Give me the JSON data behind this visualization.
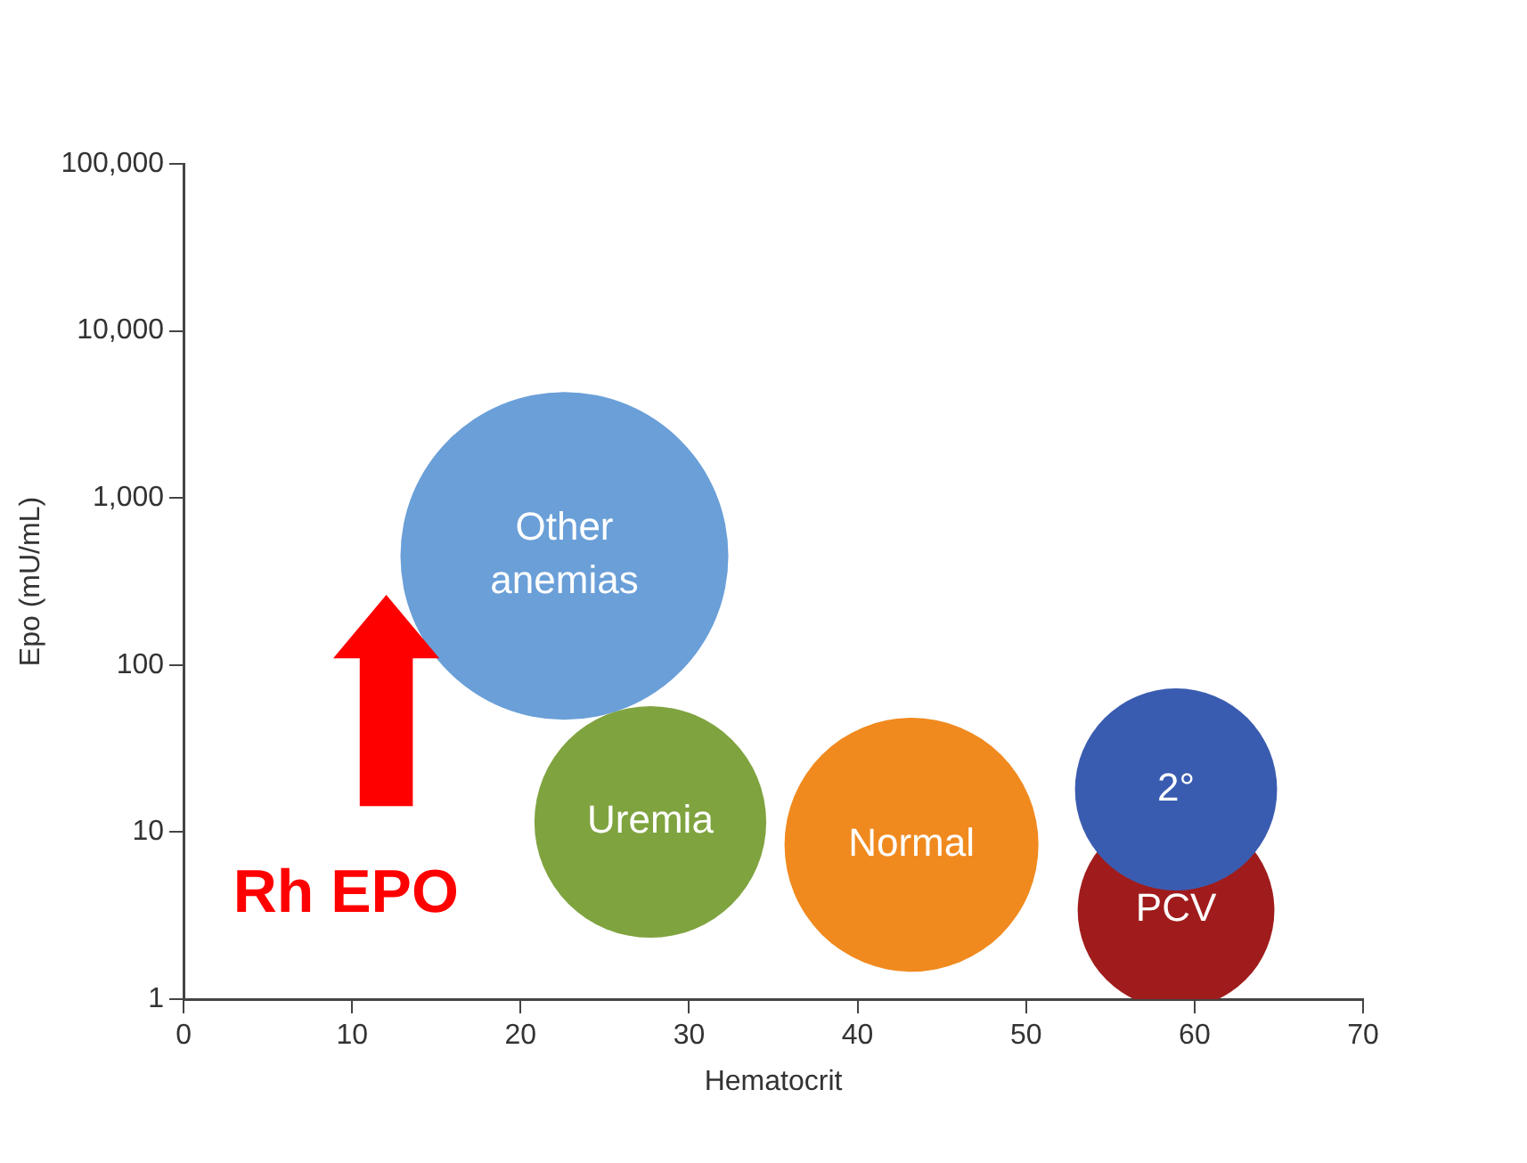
{
  "chart_data": {
    "type": "bubble",
    "xlabel": "Hematocrit",
    "ylabel": "Epo (mU/mL)",
    "log": "y",
    "xlim": [
      0,
      70
    ],
    "xticks": [
      0,
      10,
      20,
      30,
      40,
      50,
      60,
      70
    ],
    "ylim": [
      1,
      100000
    ],
    "yticks": [
      1,
      10,
      100,
      {
        "value": 1000,
        "label": "1,000"
      },
      {
        "value": 10000,
        "label": "10,000"
      },
      {
        "value": 100000,
        "label": "100,000"
      }
    ],
    "grid": false,
    "legend": false,
    "series": [
      {
        "name": "Other\nanemias",
        "color": "#6a9fd8",
        "x": [
          22.6
        ],
        "values": [
          450
        ],
        "sizes": [
          1
        ]
      },
      {
        "name": "Uremia",
        "color": "#7fa33f",
        "x": [
          27.7
        ],
        "values": [
          11.5
        ],
        "sizes": [
          0.5
        ]
      },
      {
        "name": "Normal",
        "color": "#f08a1f",
        "x": [
          43.2
        ],
        "values": [
          8.4
        ],
        "sizes": [
          0.6
        ]
      },
      {
        "name": "2°",
        "color": "#3a5cb0",
        "x": [
          58.9
        ],
        "values": [
          18
        ],
        "sizes": [
          0.38
        ]
      },
      {
        "name": "PCV",
        "color": "#a01c1c",
        "x": [
          58.9
        ],
        "values": [
          3.4
        ],
        "sizes": [
          0.36
        ]
      }
    ],
    "annotations": [
      "Rh EPO"
    ]
  }
}
